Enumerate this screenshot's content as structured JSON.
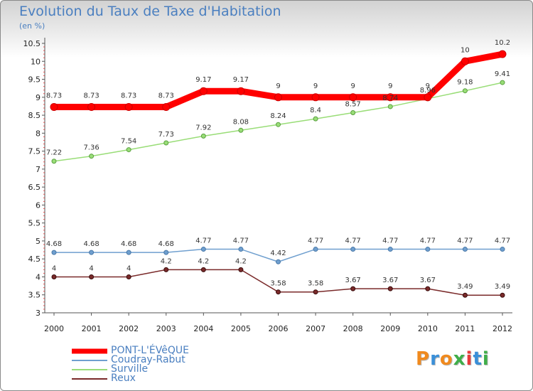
{
  "chart_data": {
    "type": "line",
    "title": "Evolution du Taux de Taxe d'Habitation",
    "subtitle": "(en %)",
    "xlabel": "",
    "ylabel": "",
    "x": [
      "2000",
      "2001",
      "2002",
      "2003",
      "2004",
      "2005",
      "2006",
      "2007",
      "2008",
      "2009",
      "2010",
      "2011",
      "2012"
    ],
    "ylim": [
      3,
      10.5
    ],
    "yticks": [
      "3",
      "3.5",
      "4",
      "4.5",
      "5",
      "5.5",
      "6",
      "6.5",
      "7",
      "7.5",
      "8",
      "8.5",
      "9",
      "9.5",
      "10",
      "10.5"
    ],
    "grid": false,
    "series": [
      {
        "name": "PONT-L'ÉVêQUE",
        "color": "#ff0000",
        "values": [
          8.73,
          8.73,
          8.73,
          8.73,
          9.17,
          9.17,
          9,
          9,
          9,
          9,
          9,
          10,
          10.2
        ],
        "labels": [
          "8.73",
          "8.73",
          "8.73",
          "8.73",
          "9.17",
          "9.17",
          "9",
          "9",
          "9",
          "9",
          "9",
          "10",
          "10.2"
        ]
      },
      {
        "name": "Coudray-Rabut",
        "color": "#6f9fcf",
        "values": [
          4.68,
          4.68,
          4.68,
          4.68,
          4.77,
          4.77,
          4.42,
          4.77,
          4.77,
          4.77,
          4.77,
          4.77,
          4.77
        ],
        "labels": [
          "4.68",
          "4.68",
          "4.68",
          "4.68",
          "4.77",
          "4.77",
          "4.42",
          "4.77",
          "4.77",
          "4.77",
          "4.77",
          "4.77",
          "4.77"
        ]
      },
      {
        "name": "Surville",
        "color": "#99dd77",
        "values": [
          7.22,
          7.36,
          7.54,
          7.73,
          7.92,
          8.08,
          8.24,
          8.4,
          8.57,
          8.74,
          8.96,
          9.18,
          9.41
        ],
        "labels": [
          "7.22",
          "7.36",
          "7.54",
          "7.73",
          "7.92",
          "8.08",
          "8.24",
          "8.4",
          "8.57",
          "8.74",
          "8.96",
          "9.18",
          "9.41"
        ]
      },
      {
        "name": "Reux",
        "color": "#7a2a2a",
        "values": [
          4,
          4,
          4,
          4.2,
          4.2,
          4.2,
          3.58,
          3.58,
          3.67,
          3.67,
          3.67,
          3.49,
          3.49
        ],
        "labels": [
          "4",
          "4",
          "4",
          "4.2",
          "4.2",
          "4.2",
          "3.58",
          "3.58",
          "3.67",
          "3.67",
          "3.67",
          "3.49",
          "3.49"
        ]
      }
    ]
  },
  "logo": {
    "text": "Proxiti",
    "colors": [
      "#f08a1e",
      "#3a8fd8",
      "#f08a1e",
      "#3fae49",
      "#e83a3a",
      "#3a8fd8",
      "#3fae49"
    ]
  }
}
